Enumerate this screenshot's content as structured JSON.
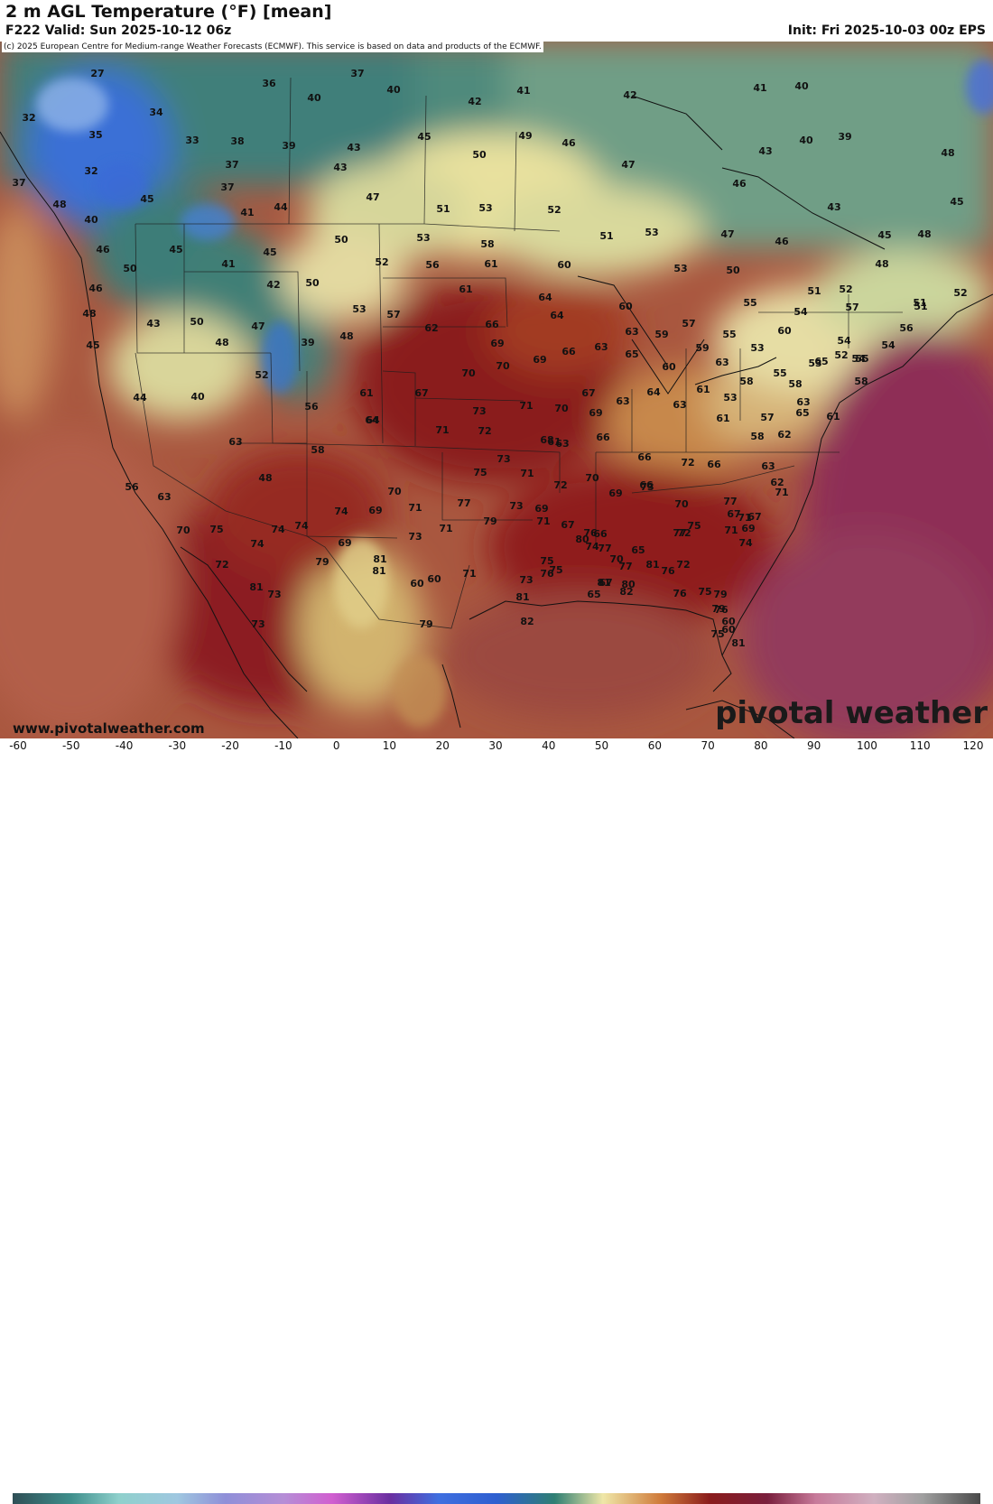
{
  "header": {
    "title": "2 m AGL Temperature (°F) [mean]",
    "valid": "F222 Valid: Sun 2025-10-12 06z",
    "init": "Init: Fri 2025-10-03 00z EPS"
  },
  "copyright": "(c) 2025 European Centre for Medium-range Weather Forecasts (ECMWF). This service is based on data and products of the ECMWF.",
  "website": "www.pivotalweather.com",
  "brand": "pivotal weather",
  "legend": {
    "ticks": [
      "-60",
      "-50",
      "-40",
      "-30",
      "-20",
      "-10",
      "0",
      "10",
      "20",
      "30",
      "40",
      "50",
      "60",
      "70",
      "80",
      "90",
      "100",
      "110",
      "120"
    ]
  },
  "colors": {
    "cold_blue": "#2e5fd0",
    "teal": "#2f6f73",
    "pale_yellow": "#efe7a8",
    "tan": "#c9955c",
    "orange": "#cf7a3a",
    "dark_red": "#8a1c1c",
    "maroon": "#7a1f3d",
    "ocean_magenta": "#92365a"
  },
  "temperatures": [
    {
      "v": "27"
    },
    {
      "v": "37"
    },
    {
      "v": "36"
    },
    {
      "v": "40"
    },
    {
      "v": "41"
    },
    {
      "v": "42"
    },
    {
      "v": "41"
    },
    {
      "v": "40"
    },
    {
      "v": "32"
    },
    {
      "v": "34"
    },
    {
      "v": "40"
    },
    {
      "v": "42"
    },
    {
      "v": "35"
    },
    {
      "v": "33"
    },
    {
      "v": "38"
    },
    {
      "v": "39"
    },
    {
      "v": "43"
    },
    {
      "v": "45"
    },
    {
      "v": "49"
    },
    {
      "v": "46"
    },
    {
      "v": "40"
    },
    {
      "v": "39"
    },
    {
      "v": "32"
    },
    {
      "v": "37"
    },
    {
      "v": "43"
    },
    {
      "v": "50"
    },
    {
      "v": "47"
    },
    {
      "v": "43"
    },
    {
      "v": "37"
    },
    {
      "v": "48"
    },
    {
      "v": "45"
    },
    {
      "v": "37"
    },
    {
      "v": "47"
    },
    {
      "v": "46"
    },
    {
      "v": "45"
    },
    {
      "v": "48"
    },
    {
      "v": "41"
    },
    {
      "v": "44"
    },
    {
      "v": "51"
    },
    {
      "v": "53"
    },
    {
      "v": "52"
    },
    {
      "v": "43"
    },
    {
      "v": "45"
    },
    {
      "v": "40"
    },
    {
      "v": "50"
    },
    {
      "v": "53"
    },
    {
      "v": "58"
    },
    {
      "v": "53"
    },
    {
      "v": "51"
    },
    {
      "v": "47"
    },
    {
      "v": "46"
    },
    {
      "v": "45"
    },
    {
      "v": "48"
    },
    {
      "v": "46"
    },
    {
      "v": "45"
    },
    {
      "v": "50"
    },
    {
      "v": "52"
    },
    {
      "v": "56"
    },
    {
      "v": "61"
    },
    {
      "v": "60"
    },
    {
      "v": "53"
    },
    {
      "v": "50"
    },
    {
      "v": "48"
    },
    {
      "v": "46"
    },
    {
      "v": "41"
    },
    {
      "v": "51"
    },
    {
      "v": "42"
    },
    {
      "v": "50"
    },
    {
      "v": "61"
    },
    {
      "v": "64"
    },
    {
      "v": "51"
    },
    {
      "v": "52"
    },
    {
      "v": "55"
    },
    {
      "v": "54"
    },
    {
      "v": "51"
    },
    {
      "v": "52"
    },
    {
      "v": "48"
    },
    {
      "v": "43"
    },
    {
      "v": "50"
    },
    {
      "v": "47"
    },
    {
      "v": "53"
    },
    {
      "v": "57"
    },
    {
      "v": "62"
    },
    {
      "v": "66"
    },
    {
      "v": "64"
    },
    {
      "v": "60"
    },
    {
      "v": "57"
    },
    {
      "v": "57"
    },
    {
      "v": "54"
    },
    {
      "v": "45"
    },
    {
      "v": "48"
    },
    {
      "v": "39"
    },
    {
      "v": "48"
    },
    {
      "v": "69"
    },
    {
      "v": "63"
    },
    {
      "v": "63"
    },
    {
      "v": "59"
    },
    {
      "v": "55"
    },
    {
      "v": "60"
    },
    {
      "v": "54"
    },
    {
      "v": "56"
    },
    {
      "v": "54"
    },
    {
      "v": "52"
    },
    {
      "v": "52"
    },
    {
      "v": "70"
    },
    {
      "v": "70"
    },
    {
      "v": "69"
    },
    {
      "v": "66"
    },
    {
      "v": "65"
    },
    {
      "v": "59"
    },
    {
      "v": "53"
    },
    {
      "v": "53"
    },
    {
      "v": "55"
    },
    {
      "v": "55"
    },
    {
      "v": "44"
    },
    {
      "v": "40"
    },
    {
      "v": "61"
    },
    {
      "v": "67"
    },
    {
      "v": "67"
    },
    {
      "v": "60"
    },
    {
      "v": "63"
    },
    {
      "v": "58"
    },
    {
      "v": "56"
    },
    {
      "v": "65"
    },
    {
      "v": "58"
    },
    {
      "v": "58"
    },
    {
      "v": "64"
    },
    {
      "v": "73"
    },
    {
      "v": "71"
    },
    {
      "v": "70"
    },
    {
      "v": "64"
    },
    {
      "v": "61"
    },
    {
      "v": "63"
    },
    {
      "v": "53"
    },
    {
      "v": "71"
    },
    {
      "v": "72"
    },
    {
      "v": "69"
    },
    {
      "v": "63"
    },
    {
      "v": "61"
    },
    {
      "v": "57"
    },
    {
      "v": "61"
    },
    {
      "v": "63"
    },
    {
      "v": "68"
    },
    {
      "v": "66"
    },
    {
      "v": "66"
    },
    {
      "v": "58"
    },
    {
      "v": "62"
    },
    {
      "v": "65"
    },
    {
      "v": "48"
    },
    {
      "v": "58"
    },
    {
      "v": "64"
    },
    {
      "v": "63"
    },
    {
      "v": "61"
    },
    {
      "v": "75"
    },
    {
      "v": "73"
    },
    {
      "v": "71"
    },
    {
      "v": "70"
    },
    {
      "v": "72"
    },
    {
      "v": "69"
    },
    {
      "v": "66"
    },
    {
      "v": "63"
    },
    {
      "v": "63"
    },
    {
      "v": "56"
    },
    {
      "v": "63"
    },
    {
      "v": "72"
    },
    {
      "v": "66"
    },
    {
      "v": "71"
    },
    {
      "v": "77"
    },
    {
      "v": "73"
    },
    {
      "v": "69"
    },
    {
      "v": "67"
    },
    {
      "v": "66"
    },
    {
      "v": "65"
    },
    {
      "v": "73"
    },
    {
      "v": "77"
    },
    {
      "v": "70"
    },
    {
      "v": "71"
    },
    {
      "v": "69"
    },
    {
      "v": "70"
    },
    {
      "v": "67"
    },
    {
      "v": "67"
    },
    {
      "v": "62"
    },
    {
      "v": "75"
    },
    {
      "v": "74"
    },
    {
      "v": "74"
    },
    {
      "v": "73"
    },
    {
      "v": "76"
    },
    {
      "v": "77"
    },
    {
      "v": "75"
    },
    {
      "v": "71"
    },
    {
      "v": "70"
    },
    {
      "v": "71"
    },
    {
      "v": "79"
    },
    {
      "v": "71"
    },
    {
      "v": "74"
    },
    {
      "v": "67"
    },
    {
      "v": "69"
    },
    {
      "v": "74"
    },
    {
      "v": "74"
    },
    {
      "v": "74"
    },
    {
      "v": "69"
    },
    {
      "v": "81"
    },
    {
      "v": "76"
    },
    {
      "v": "77"
    },
    {
      "v": "75"
    },
    {
      "v": "70"
    },
    {
      "v": "72"
    },
    {
      "v": "71"
    },
    {
      "v": "79"
    },
    {
      "v": "72"
    },
    {
      "v": "81"
    },
    {
      "v": "71"
    },
    {
      "v": "79"
    },
    {
      "v": "73"
    },
    {
      "v": "82"
    },
    {
      "v": "81"
    },
    {
      "v": "81"
    },
    {
      "v": "73"
    },
    {
      "v": "76"
    },
    {
      "v": "65"
    },
    {
      "v": "75"
    },
    {
      "v": "76"
    },
    {
      "v": "76"
    },
    {
      "v": "79"
    },
    {
      "v": "81"
    },
    {
      "v": "73"
    },
    {
      "v": "72"
    },
    {
      "v": "75"
    },
    {
      "v": "80"
    },
    {
      "v": "77"
    },
    {
      "v": "80"
    },
    {
      "v": "81"
    },
    {
      "v": "60"
    },
    {
      "v": "60"
    },
    {
      "v": "82"
    },
    {
      "v": "79"
    },
    {
      "v": "60"
    },
    {
      "v": "75"
    },
    {
      "v": "81"
    },
    {
      "v": "60"
    }
  ]
}
